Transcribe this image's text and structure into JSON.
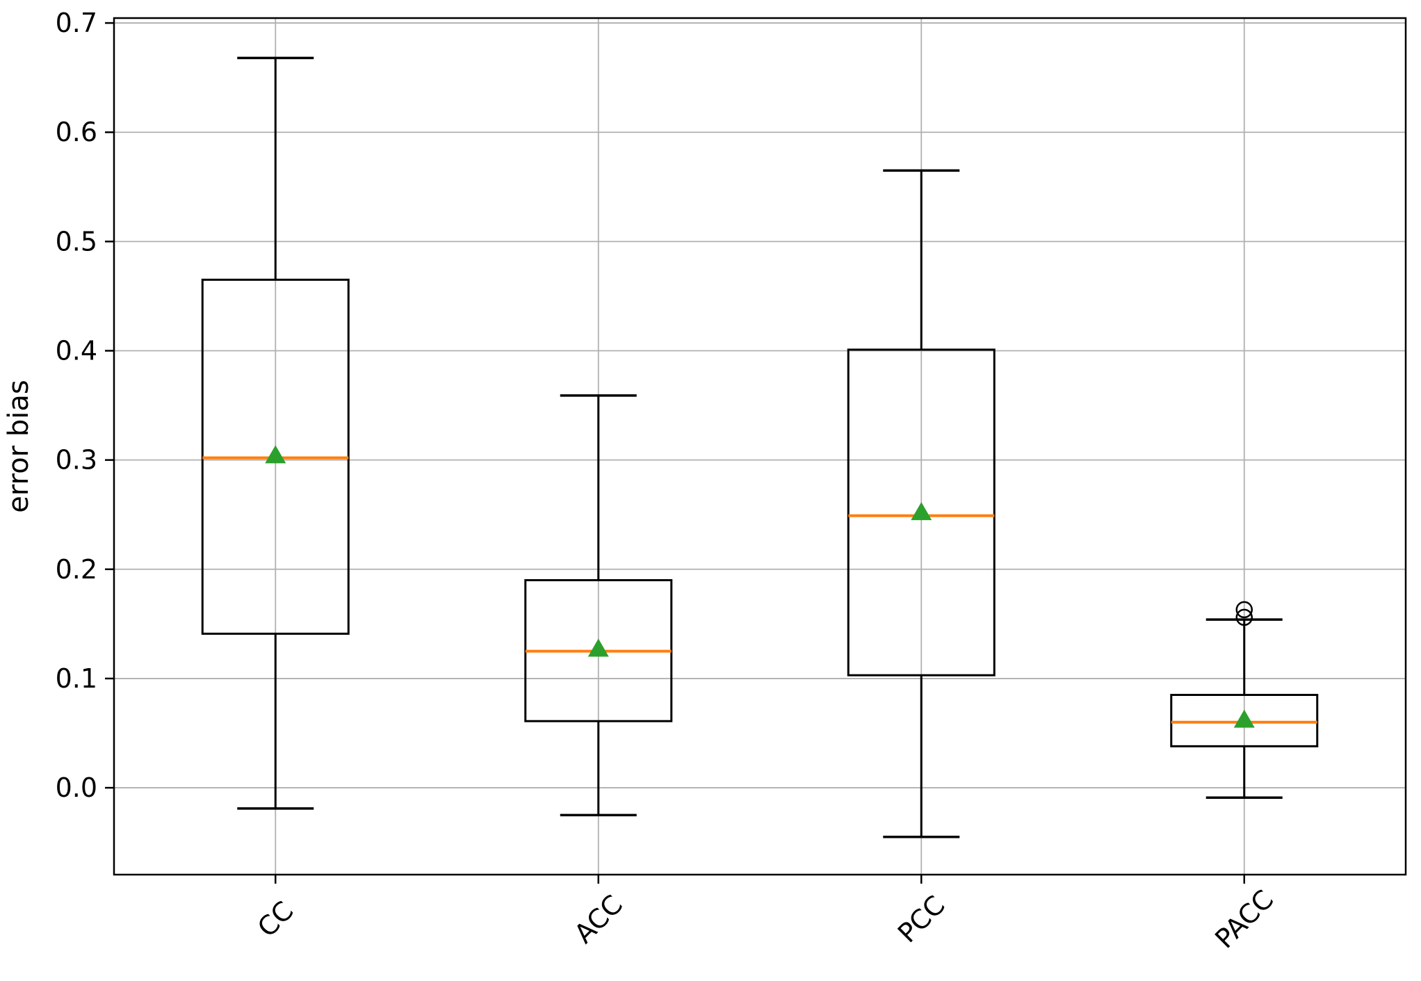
{
  "chart_data": {
    "type": "box",
    "title": "",
    "xlabel": "",
    "ylabel": "error bias",
    "categories": [
      "CC",
      "ACC",
      "PCC",
      "PACC"
    ],
    "ylim": [
      -0.0795,
      0.7045
    ],
    "yticks": [
      0.0,
      0.1,
      0.2,
      0.3,
      0.4,
      0.5,
      0.6,
      0.7
    ],
    "ytick_labels": [
      "0.0",
      "0.1",
      "0.2",
      "0.3",
      "0.4",
      "0.5",
      "0.6",
      "0.7"
    ],
    "grid": true,
    "legend": "none",
    "boxes": [
      {
        "name": "CC",
        "whisker_low": -0.019,
        "q1": 0.141,
        "median": 0.302,
        "mean": 0.304,
        "q3": 0.465,
        "whisker_high": 0.668,
        "outliers": []
      },
      {
        "name": "ACC",
        "whisker_low": -0.025,
        "q1": 0.061,
        "median": 0.125,
        "mean": 0.127,
        "q3": 0.19,
        "whisker_high": 0.359,
        "outliers": []
      },
      {
        "name": "PCC",
        "whisker_low": -0.045,
        "q1": 0.103,
        "median": 0.249,
        "mean": 0.252,
        "q3": 0.401,
        "whisker_high": 0.565,
        "outliers": []
      },
      {
        "name": "PACC",
        "whisker_low": -0.009,
        "q1": 0.038,
        "median": 0.06,
        "mean": 0.062,
        "q3": 0.085,
        "whisker_high": 0.154,
        "outliers": [
          0.156,
          0.163
        ]
      }
    ],
    "colors": {
      "median_line": "#ff7f0e",
      "mean_marker": "#2ca02c",
      "box_stroke": "#000000",
      "grid_line": "#b0b0b0",
      "spine": "#000000",
      "background": "#ffffff"
    }
  }
}
